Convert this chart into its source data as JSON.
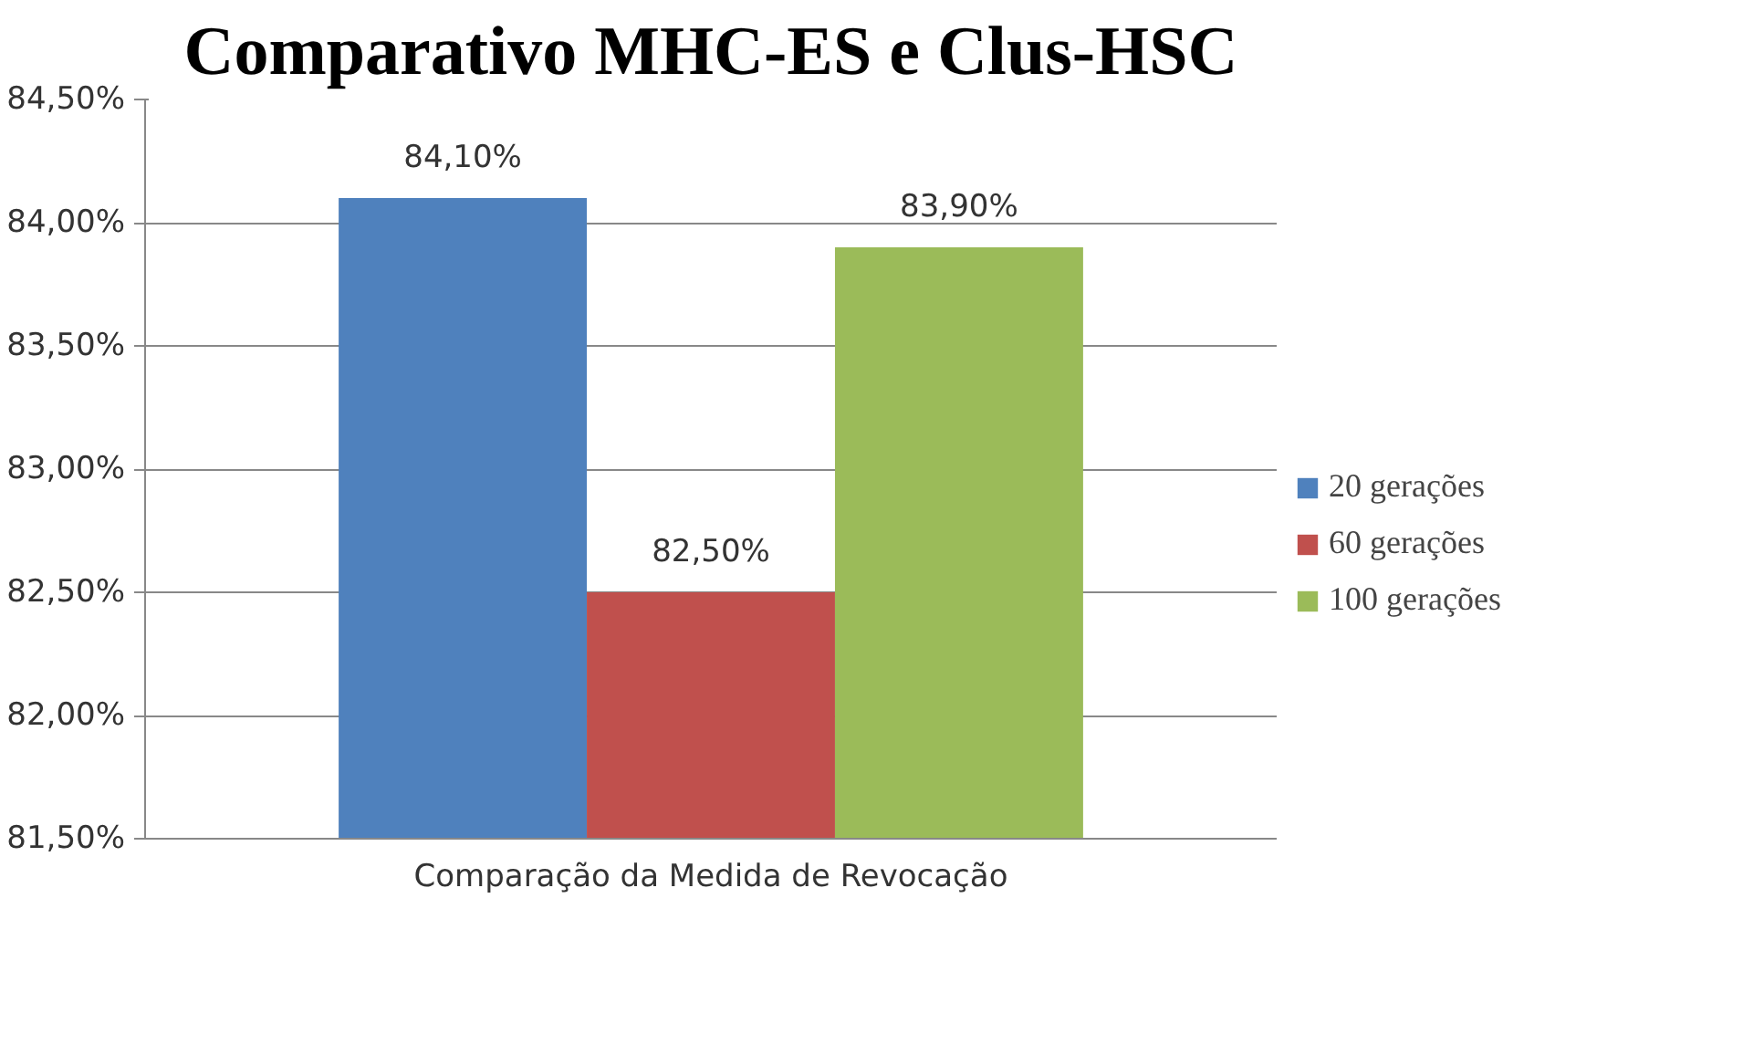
{
  "chart_data": {
    "type": "bar",
    "title": "Comparativo MHC-ES e Clus-HSC",
    "categories": [
      "Comparação da Medida de Revocação"
    ],
    "series": [
      {
        "name": "20 gerações",
        "color": "#4f81bd",
        "values": [
          84.1
        ],
        "value_labels": [
          "84,10%"
        ]
      },
      {
        "name": "60 gerações",
        "color": "#c0504d",
        "values": [
          82.5
        ],
        "value_labels": [
          "82,50%"
        ]
      },
      {
        "name": "100 gerações",
        "color": "#9bbb59",
        "values": [
          83.9
        ],
        "value_labels": [
          "83,90%"
        ]
      }
    ],
    "ylim": [
      81.5,
      84.5
    ],
    "yticks": [
      {
        "value": 81.5,
        "label": "81,50%"
      },
      {
        "value": 82.0,
        "label": "82,00%"
      },
      {
        "value": 82.5,
        "label": "82,50%"
      },
      {
        "value": 83.0,
        "label": "83,00%"
      },
      {
        "value": 83.5,
        "label": "83,50%"
      },
      {
        "value": 84.0,
        "label": "84,00%"
      },
      {
        "value": 84.5,
        "label": "84,50%"
      }
    ],
    "grid": "y",
    "legend": "right"
  }
}
